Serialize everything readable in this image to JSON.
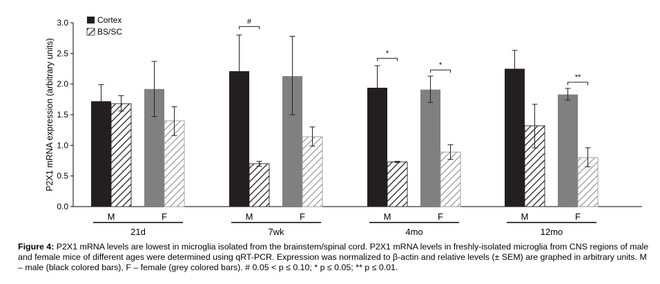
{
  "chart_data": {
    "type": "bar",
    "ylabel": "P2X1 mRNA expression (arbitrary units)",
    "ylim": [
      0,
      3.0
    ],
    "yticks": [
      "0.0",
      "0.5",
      "1.0",
      "1.5",
      "2.0",
      "2.5",
      "3.0"
    ],
    "legend": [
      {
        "name": "Cortex",
        "style": "solid",
        "color": "#231f20"
      },
      {
        "name": "BS/SC",
        "style": "hatched",
        "color": "#231f20"
      }
    ],
    "legend_position": "top-left",
    "colors": {
      "male": "#231f20",
      "female": "#808080",
      "axis": "#000000"
    },
    "groups": [
      {
        "age": "21d",
        "sexes": [
          {
            "label": "M",
            "cortex": {
              "value": 1.72,
              "err_hi": 1.99,
              "err_lo": 1.45
            },
            "bssc": {
              "value": 1.68,
              "err_hi": 1.81,
              "err_lo": 1.56
            }
          },
          {
            "label": "F",
            "cortex": {
              "value": 1.92,
              "err_hi": 2.37,
              "err_lo": 1.47
            },
            "bssc": {
              "value": 1.4,
              "err_hi": 1.63,
              "err_lo": 1.16
            }
          }
        ],
        "sig": []
      },
      {
        "age": "7wk",
        "sexes": [
          {
            "label": "M",
            "cortex": {
              "value": 2.21,
              "err_hi": 2.8,
              "err_lo": 1.64
            },
            "bssc": {
              "value": 0.7,
              "err_hi": 0.74,
              "err_lo": 0.66
            }
          },
          {
            "label": "F",
            "cortex": {
              "value": 2.13,
              "err_hi": 2.78,
              "err_lo": 1.5
            },
            "bssc": {
              "value": 1.14,
              "err_hi": 1.3,
              "err_lo": 0.99
            }
          }
        ],
        "sig": [
          {
            "sex": 0,
            "mark": "#",
            "y": 2.94
          }
        ]
      },
      {
        "age": "4mo",
        "sexes": [
          {
            "label": "M",
            "cortex": {
              "value": 1.94,
              "err_hi": 2.3,
              "err_lo": 1.56
            },
            "bssc": {
              "value": 0.73,
              "err_hi": 0.74,
              "err_lo": 0.72
            }
          },
          {
            "label": "F",
            "cortex": {
              "value": 1.91,
              "err_hi": 2.13,
              "err_lo": 1.7
            },
            "bssc": {
              "value": 0.89,
              "err_hi": 1.01,
              "err_lo": 0.77
            }
          }
        ],
        "sig": [
          {
            "sex": 0,
            "mark": "*",
            "y": 2.42
          },
          {
            "sex": 1,
            "mark": "*",
            "y": 2.23
          }
        ]
      },
      {
        "age": "12mo",
        "sexes": [
          {
            "label": "M",
            "cortex": {
              "value": 2.25,
              "err_hi": 2.55,
              "err_lo": 1.95
            },
            "bssc": {
              "value": 1.32,
              "err_hi": 1.67,
              "err_lo": 0.96
            }
          },
          {
            "label": "F",
            "cortex": {
              "value": 1.83,
              "err_hi": 1.93,
              "err_lo": 1.74
            },
            "bssc": {
              "value": 0.8,
              "err_hi": 0.96,
              "err_lo": 0.65
            }
          }
        ],
        "sig": [
          {
            "sex": 1,
            "mark": "**",
            "y": 2.03
          }
        ]
      }
    ]
  },
  "caption": {
    "label": "Figure 4:",
    "text": " P2X1 mRNA levels are lowest in microglia isolated from the brainstem/spinal cord. P2X1 mRNA levels in freshly-isolated microglia from CNS regions of male and female mice of different ages were determined using qRT-PCR.  Expression was normalized to β-actin and relative levels (± SEM) are graphed in arbitrary units.  M – male (black colored bars), F – female (grey colored bars).  # 0.05 < p ≤ 0.10; * p ≤ 0.05; ** p ≤ 0.01."
  }
}
